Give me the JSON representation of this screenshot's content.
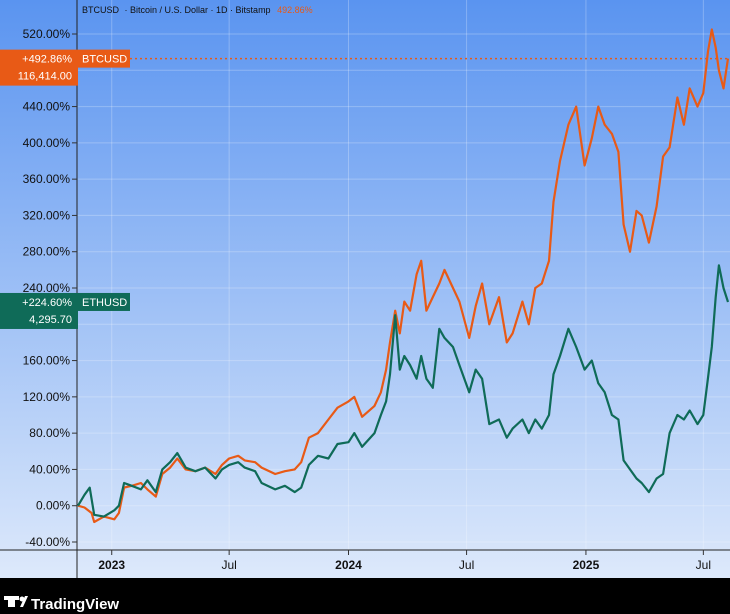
{
  "header": {
    "symbol": "BTCUSD",
    "description": "· Bitcoin / U.S. Dollar · 1D · Bitstamp",
    "change": "492.86%"
  },
  "brand": {
    "name": "TradingView",
    "icon": "tradingview-logo-icon"
  },
  "colors": {
    "background_top": "#5a94f0",
    "background_bottom": "#dde9fb",
    "btc": "#e85a16",
    "eth": "#0f6b58"
  },
  "chart_data": {
    "type": "line",
    "y_unit": "percent",
    "ylim": [
      -45,
      560
    ],
    "yticks": [
      {
        "value": 520,
        "label": "520.00%"
      },
      {
        "value": 480,
        "label": "480.00%"
      },
      {
        "value": 440,
        "label": "440.00%"
      },
      {
        "value": 400,
        "label": "400.00%"
      },
      {
        "value": 360,
        "label": "360.00%"
      },
      {
        "value": 320,
        "label": "320.00%"
      },
      {
        "value": 280,
        "label": "280.00%"
      },
      {
        "value": 240,
        "label": "240.00%"
      },
      {
        "value": 200,
        "label": "200.00%"
      },
      {
        "value": 160,
        "label": "160.00%"
      },
      {
        "value": 120,
        "label": "120.00%"
      },
      {
        "value": 80,
        "label": "80.00%"
      },
      {
        "value": 40,
        "label": "40.00%"
      },
      {
        "value": 0,
        "label": "0.00%"
      },
      {
        "value": -40,
        "label": "-40.00%"
      }
    ],
    "xlim": [
      "2022-11-10",
      "2025-08-08"
    ],
    "xticks": [
      {
        "date": "2023-01-01",
        "label": "2023",
        "major": true
      },
      {
        "date": "2023-07-01",
        "label": "Jul",
        "major": false
      },
      {
        "date": "2024-01-01",
        "label": "2024",
        "major": true
      },
      {
        "date": "2024-07-01",
        "label": "Jul",
        "major": false
      },
      {
        "date": "2025-01-01",
        "label": "2025",
        "major": true
      },
      {
        "date": "2025-07-01",
        "label": "Jul",
        "major": false
      }
    ],
    "series": [
      {
        "name": "BTCUSD",
        "color": "#e85a16",
        "last_change": "+492.86%",
        "last_price": "116,414.00",
        "last_value": 492.86,
        "points": [
          [
            "2022-11-10",
            0
          ],
          [
            "2022-11-20",
            -2
          ],
          [
            "2022-12-01",
            -8
          ],
          [
            "2022-12-05",
            -18
          ],
          [
            "2022-12-20",
            -12
          ],
          [
            "2023-01-05",
            -15
          ],
          [
            "2023-01-12",
            -8
          ],
          [
            "2023-01-20",
            20
          ],
          [
            "2023-02-01",
            22
          ],
          [
            "2023-02-15",
            25
          ],
          [
            "2023-02-25",
            18
          ],
          [
            "2023-03-10",
            10
          ],
          [
            "2023-03-20",
            35
          ],
          [
            "2023-04-01",
            42
          ],
          [
            "2023-04-12",
            52
          ],
          [
            "2023-04-25",
            40
          ],
          [
            "2023-05-10",
            38
          ],
          [
            "2023-05-25",
            42
          ],
          [
            "2023-06-10",
            35
          ],
          [
            "2023-06-20",
            45
          ],
          [
            "2023-07-01",
            52
          ],
          [
            "2023-07-15",
            55
          ],
          [
            "2023-07-25",
            50
          ],
          [
            "2023-08-10",
            48
          ],
          [
            "2023-08-20",
            42
          ],
          [
            "2023-09-10",
            35
          ],
          [
            "2023-09-25",
            38
          ],
          [
            "2023-10-10",
            40
          ],
          [
            "2023-10-20",
            48
          ],
          [
            "2023-11-01",
            75
          ],
          [
            "2023-11-15",
            80
          ],
          [
            "2023-12-01",
            95
          ],
          [
            "2023-12-15",
            108
          ],
          [
            "2024-01-01",
            115
          ],
          [
            "2024-01-10",
            120
          ],
          [
            "2024-01-22",
            98
          ],
          [
            "2024-02-10",
            110
          ],
          [
            "2024-02-20",
            125
          ],
          [
            "2024-02-28",
            150
          ],
          [
            "2024-03-05",
            180
          ],
          [
            "2024-03-13",
            215
          ],
          [
            "2024-03-20",
            190
          ],
          [
            "2024-03-27",
            225
          ],
          [
            "2024-04-05",
            215
          ],
          [
            "2024-04-15",
            255
          ],
          [
            "2024-04-22",
            270
          ],
          [
            "2024-04-30",
            215
          ],
          [
            "2024-05-10",
            230
          ],
          [
            "2024-05-20",
            245
          ],
          [
            "2024-05-28",
            260
          ],
          [
            "2024-06-10",
            240
          ],
          [
            "2024-06-20",
            225
          ],
          [
            "2024-07-05",
            185
          ],
          [
            "2024-07-15",
            220
          ],
          [
            "2024-07-25",
            245
          ],
          [
            "2024-08-05",
            200
          ],
          [
            "2024-08-20",
            230
          ],
          [
            "2024-09-01",
            180
          ],
          [
            "2024-09-10",
            190
          ],
          [
            "2024-09-25",
            225
          ],
          [
            "2024-10-05",
            200
          ],
          [
            "2024-10-15",
            240
          ],
          [
            "2024-10-25",
            245
          ],
          [
            "2024-11-05",
            270
          ],
          [
            "2024-11-12",
            335
          ],
          [
            "2024-11-22",
            380
          ],
          [
            "2024-12-05",
            420
          ],
          [
            "2024-12-17",
            440
          ],
          [
            "2024-12-30",
            375
          ],
          [
            "2025-01-10",
            405
          ],
          [
            "2025-01-20",
            440
          ],
          [
            "2025-01-30",
            420
          ],
          [
            "2025-02-10",
            410
          ],
          [
            "2025-02-20",
            390
          ],
          [
            "2025-02-28",
            310
          ],
          [
            "2025-03-10",
            280
          ],
          [
            "2025-03-20",
            325
          ],
          [
            "2025-03-28",
            320
          ],
          [
            "2025-04-08",
            290
          ],
          [
            "2025-04-20",
            330
          ],
          [
            "2025-04-30",
            385
          ],
          [
            "2025-05-10",
            395
          ],
          [
            "2025-05-22",
            450
          ],
          [
            "2025-06-01",
            420
          ],
          [
            "2025-06-10",
            460
          ],
          [
            "2025-06-22",
            440
          ],
          [
            "2025-07-01",
            455
          ],
          [
            "2025-07-08",
            500
          ],
          [
            "2025-07-14",
            525
          ],
          [
            "2025-07-20",
            505
          ],
          [
            "2025-07-25",
            480
          ],
          [
            "2025-08-01",
            460
          ],
          [
            "2025-08-08",
            492.86
          ]
        ]
      },
      {
        "name": "ETHUSD",
        "color": "#0f6b58",
        "last_change": "+224.60%",
        "last_price": "4,295.70",
        "last_value": 224.6,
        "points": [
          [
            "2022-11-10",
            0
          ],
          [
            "2022-11-20",
            12
          ],
          [
            "2022-11-28",
            20
          ],
          [
            "2022-12-05",
            -10
          ],
          [
            "2022-12-20",
            -12
          ],
          [
            "2023-01-05",
            -5
          ],
          [
            "2023-01-12",
            0
          ],
          [
            "2023-01-20",
            25
          ],
          [
            "2023-02-01",
            22
          ],
          [
            "2023-02-15",
            18
          ],
          [
            "2023-02-25",
            28
          ],
          [
            "2023-03-10",
            15
          ],
          [
            "2023-03-20",
            40
          ],
          [
            "2023-04-01",
            48
          ],
          [
            "2023-04-12",
            58
          ],
          [
            "2023-04-25",
            42
          ],
          [
            "2023-05-10",
            38
          ],
          [
            "2023-05-25",
            42
          ],
          [
            "2023-06-10",
            30
          ],
          [
            "2023-06-20",
            40
          ],
          [
            "2023-07-01",
            45
          ],
          [
            "2023-07-15",
            48
          ],
          [
            "2023-07-25",
            42
          ],
          [
            "2023-08-10",
            38
          ],
          [
            "2023-08-20",
            25
          ],
          [
            "2023-09-10",
            18
          ],
          [
            "2023-09-25",
            22
          ],
          [
            "2023-10-10",
            15
          ],
          [
            "2023-10-20",
            20
          ],
          [
            "2023-11-01",
            45
          ],
          [
            "2023-11-15",
            55
          ],
          [
            "2023-12-01",
            52
          ],
          [
            "2023-12-15",
            68
          ],
          [
            "2024-01-01",
            70
          ],
          [
            "2024-01-10",
            80
          ],
          [
            "2024-01-22",
            65
          ],
          [
            "2024-02-10",
            80
          ],
          [
            "2024-02-20",
            100
          ],
          [
            "2024-02-28",
            115
          ],
          [
            "2024-03-05",
            145
          ],
          [
            "2024-03-13",
            210
          ],
          [
            "2024-03-20",
            150
          ],
          [
            "2024-03-27",
            165
          ],
          [
            "2024-04-05",
            155
          ],
          [
            "2024-04-15",
            140
          ],
          [
            "2024-04-22",
            165
          ],
          [
            "2024-04-30",
            140
          ],
          [
            "2024-05-10",
            130
          ],
          [
            "2024-05-20",
            195
          ],
          [
            "2024-05-28",
            185
          ],
          [
            "2024-06-10",
            175
          ],
          [
            "2024-06-20",
            155
          ],
          [
            "2024-07-05",
            125
          ],
          [
            "2024-07-15",
            150
          ],
          [
            "2024-07-25",
            140
          ],
          [
            "2024-08-05",
            90
          ],
          [
            "2024-08-20",
            95
          ],
          [
            "2024-09-01",
            75
          ],
          [
            "2024-09-10",
            85
          ],
          [
            "2024-09-25",
            95
          ],
          [
            "2024-10-05",
            80
          ],
          [
            "2024-10-15",
            95
          ],
          [
            "2024-10-25",
            85
          ],
          [
            "2024-11-05",
            100
          ],
          [
            "2024-11-12",
            145
          ],
          [
            "2024-11-22",
            165
          ],
          [
            "2024-12-05",
            195
          ],
          [
            "2024-12-17",
            175
          ],
          [
            "2024-12-30",
            150
          ],
          [
            "2025-01-10",
            160
          ],
          [
            "2025-01-20",
            135
          ],
          [
            "2025-01-30",
            125
          ],
          [
            "2025-02-10",
            100
          ],
          [
            "2025-02-20",
            95
          ],
          [
            "2025-02-28",
            50
          ],
          [
            "2025-03-10",
            40
          ],
          [
            "2025-03-20",
            30
          ],
          [
            "2025-03-28",
            25
          ],
          [
            "2025-04-08",
            15
          ],
          [
            "2025-04-20",
            30
          ],
          [
            "2025-04-30",
            35
          ],
          [
            "2025-05-10",
            80
          ],
          [
            "2025-05-22",
            100
          ],
          [
            "2025-06-01",
            95
          ],
          [
            "2025-06-10",
            105
          ],
          [
            "2025-06-22",
            90
          ],
          [
            "2025-07-01",
            100
          ],
          [
            "2025-07-08",
            140
          ],
          [
            "2025-07-14",
            175
          ],
          [
            "2025-07-20",
            230
          ],
          [
            "2025-07-25",
            265
          ],
          [
            "2025-08-01",
            240
          ],
          [
            "2025-08-08",
            224.6
          ]
        ]
      }
    ]
  }
}
